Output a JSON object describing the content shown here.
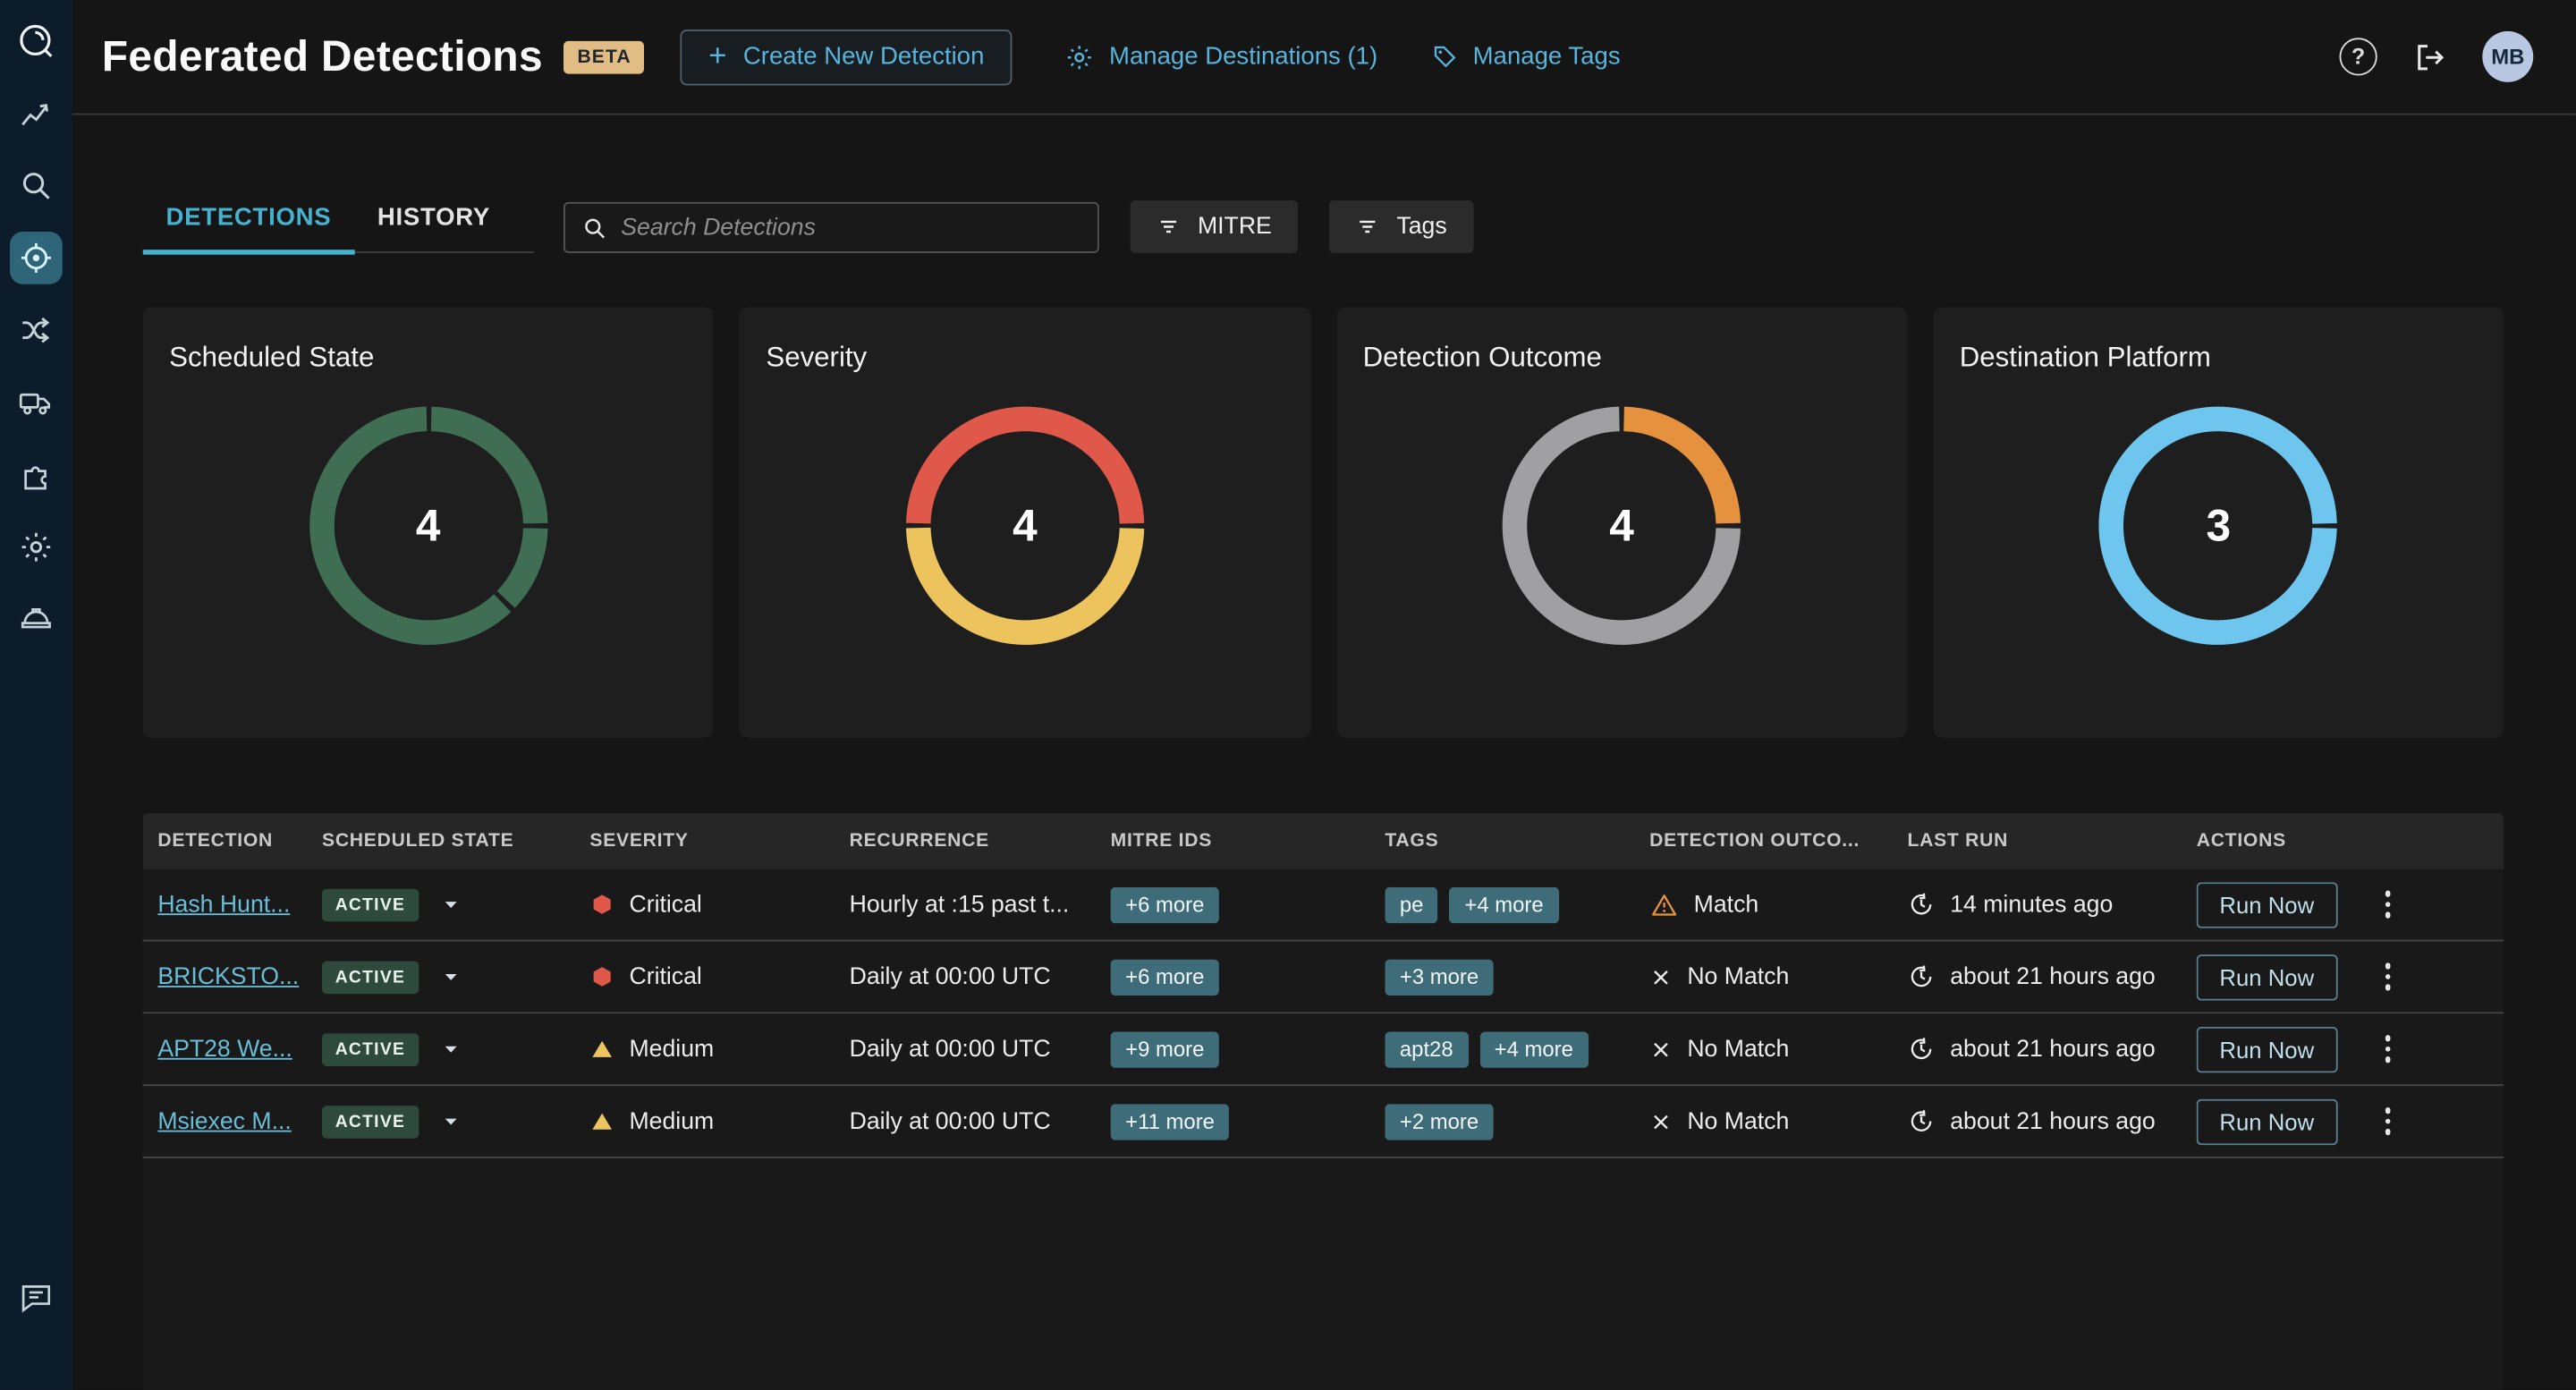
{
  "colors": {
    "accent_blue": "#57b4dc",
    "tab_active": "#45b2d0",
    "link": "#68bdd8",
    "chip_teal": "#3f6c79",
    "active_badge_bg": "#2d4a3c",
    "severity_critical": "#e0584a",
    "severity_medium": "#edc35e",
    "warning_orange": "#e5913d",
    "beta_badge_bg": "#e2bc85",
    "avatar_bg": "#b9c8e2",
    "sidebar_bg": "#0d1c2a",
    "sidebar_active_bg": "#2f6579"
  },
  "sidebar": {
    "items": [
      {
        "icon": "logo",
        "active": false
      },
      {
        "icon": "analytics",
        "active": false
      },
      {
        "icon": "search",
        "active": false
      },
      {
        "icon": "detections",
        "active": true
      },
      {
        "icon": "workflow",
        "active": false
      },
      {
        "icon": "pipeline",
        "active": false
      },
      {
        "icon": "integrations",
        "active": false
      },
      {
        "icon": "settings",
        "active": false
      },
      {
        "icon": "helmet",
        "active": false
      }
    ],
    "bottom_items": [
      {
        "icon": "feedback",
        "active": false
      }
    ]
  },
  "header": {
    "title": "Federated Detections",
    "beta_badge": "BETA",
    "plus": "+",
    "create_button": "Create New Detection",
    "manage_destinations": "Manage Destinations (1)",
    "manage_tags": "Manage Tags",
    "help": "?",
    "avatar": "MB"
  },
  "tabs": [
    {
      "label": "DETECTIONS",
      "active": true
    },
    {
      "label": "HISTORY",
      "active": false
    }
  ],
  "search": {
    "placeholder": "Search Detections"
  },
  "filters": [
    {
      "label": "MITRE"
    },
    {
      "label": "Tags"
    }
  ],
  "chart_data": [
    {
      "type": "donut",
      "title": "Scheduled State",
      "center_value": 4,
      "rotate": -90,
      "segments": [
        {
          "label": "segment",
          "color": "#3f6e55",
          "frac": 0.25
        },
        {
          "label": "segment",
          "color": "#3f6e55",
          "frac": 0.125
        },
        {
          "label": "segment",
          "color": "#3f6e55",
          "frac": 0.625
        }
      ]
    },
    {
      "type": "donut",
      "title": "Severity",
      "center_value": 4,
      "rotate": 180,
      "segments": [
        {
          "label": "Critical",
          "color": "#e0584a",
          "frac": 0.5
        },
        {
          "label": "Medium",
          "color": "#edc35e",
          "frac": 0.5
        }
      ]
    },
    {
      "type": "donut",
      "title": "Detection Outcome",
      "center_value": 4,
      "rotate": -90,
      "segments": [
        {
          "label": "Match",
          "color": "#e5913d",
          "frac": 0.25
        },
        {
          "label": "No Match",
          "color": "#a0a0a2",
          "frac": 0.75
        }
      ]
    },
    {
      "type": "donut",
      "title": "Destination Platform",
      "center_value": 3,
      "rotate": 0,
      "segments": [
        {
          "label": "segment",
          "color": "#6ec5ee",
          "frac": 1.0
        }
      ]
    }
  ],
  "table": {
    "columns": [
      "DETECTION",
      "SCHEDULED STATE",
      "SEVERITY",
      "RECURRENCE",
      "MITRE IDS",
      "TAGS",
      "DETECTION OUTCO...",
      "LAST RUN",
      "ACTIONS"
    ],
    "rows": [
      {
        "detection": "Hash Hunt...",
        "state": "ACTIVE",
        "severity": {
          "level": "critical",
          "label": "Critical"
        },
        "recurrence": "Hourly at :15 past t...",
        "mitre": [
          "+6 more"
        ],
        "tags": [
          "pe",
          "+4 more"
        ],
        "outcome": {
          "match": true,
          "label": "Match"
        },
        "last_run": "14 minutes ago",
        "action": "Run Now"
      },
      {
        "detection": "BRICKSTO...",
        "state": "ACTIVE",
        "severity": {
          "level": "critical",
          "label": "Critical"
        },
        "recurrence": "Daily at 00:00 UTC",
        "mitre": [
          "+6 more"
        ],
        "tags": [
          "+3 more"
        ],
        "outcome": {
          "match": false,
          "label": "No Match"
        },
        "last_run": "about 21 hours ago",
        "action": "Run Now"
      },
      {
        "detection": "APT28 We...",
        "state": "ACTIVE",
        "severity": {
          "level": "medium",
          "label": "Medium"
        },
        "recurrence": "Daily at 00:00 UTC",
        "mitre": [
          "+9 more"
        ],
        "tags": [
          "apt28",
          "+4 more"
        ],
        "outcome": {
          "match": false,
          "label": "No Match"
        },
        "last_run": "about 21 hours ago",
        "action": "Run Now"
      },
      {
        "detection": "Msiexec M...",
        "state": "ACTIVE",
        "severity": {
          "level": "medium",
          "label": "Medium"
        },
        "recurrence": "Daily at 00:00 UTC",
        "mitre": [
          "+11 more"
        ],
        "tags": [
          "+2 more"
        ],
        "outcome": {
          "match": false,
          "label": "No Match"
        },
        "last_run": "about 21 hours ago",
        "action": "Run Now"
      }
    ]
  }
}
